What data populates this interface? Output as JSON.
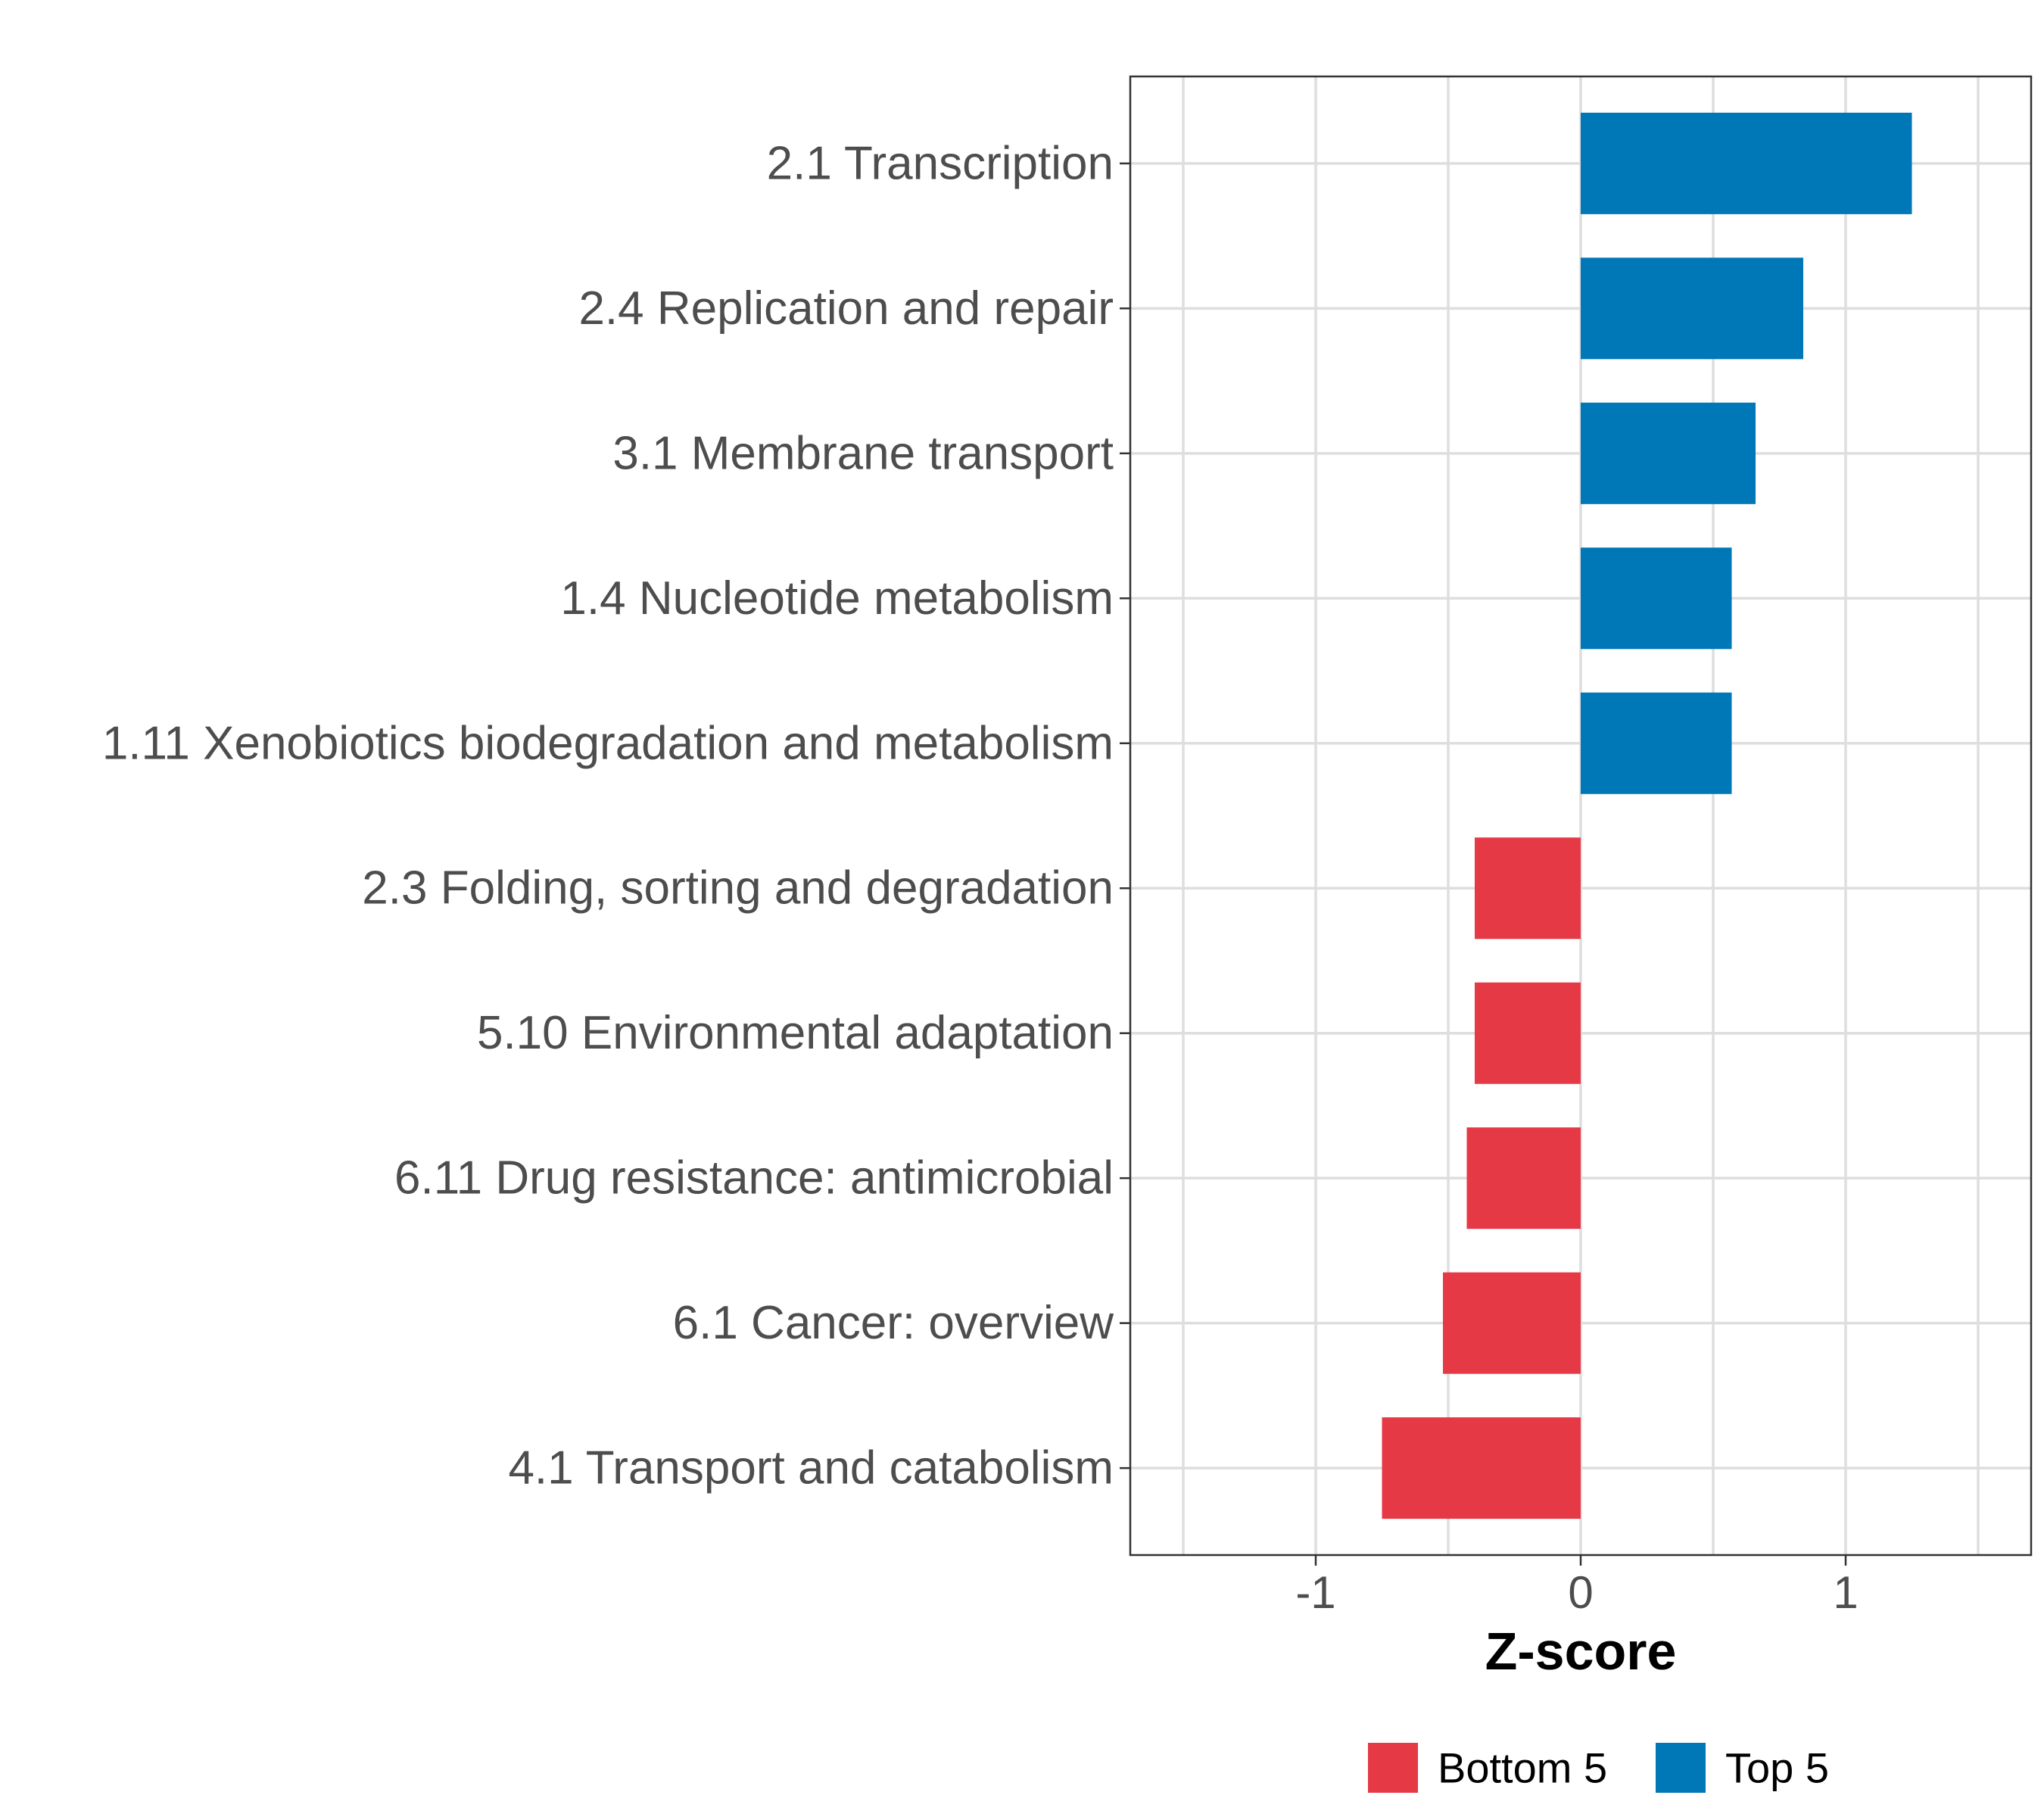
{
  "chart_data": {
    "type": "bar",
    "orientation": "horizontal",
    "categories": [
      "2.1 Transcription",
      "2.4 Replication and repair",
      "3.1 Membrane transport",
      "1.4 Nucleotide metabolism",
      "1.11 Xenobiotics biodegradation and metabolism",
      "2.3 Folding, sorting and degradation",
      "5.10 Environmental adaptation",
      "6.11 Drug resistance: antimicrobial",
      "6.1 Cancer: overview",
      "4.1 Transport and catabolism"
    ],
    "values": [
      1.25,
      0.84,
      0.66,
      0.57,
      0.57,
      -0.4,
      -0.4,
      -0.43,
      -0.52,
      -0.75
    ],
    "groups": [
      "Top 5",
      "Top 5",
      "Top 5",
      "Top 5",
      "Top 5",
      "Bottom 5",
      "Bottom 5",
      "Bottom 5",
      "Bottom 5",
      "Bottom 5"
    ],
    "xlabel": "Z-score",
    "ylabel": "",
    "xlim": [
      -1.7,
      1.7
    ],
    "xticks": [
      -1,
      0,
      1
    ],
    "xtick_labels": [
      "-1",
      "0",
      "1"
    ],
    "grid": true,
    "legend": {
      "position": "bottom",
      "entries": [
        {
          "label": "Bottom 5",
          "color": "#e63946"
        },
        {
          "label": "Top 5",
          "color": "#0077b6"
        }
      ]
    },
    "colors": {
      "Top 5": "#0077b6",
      "Bottom 5": "#e63946"
    }
  }
}
